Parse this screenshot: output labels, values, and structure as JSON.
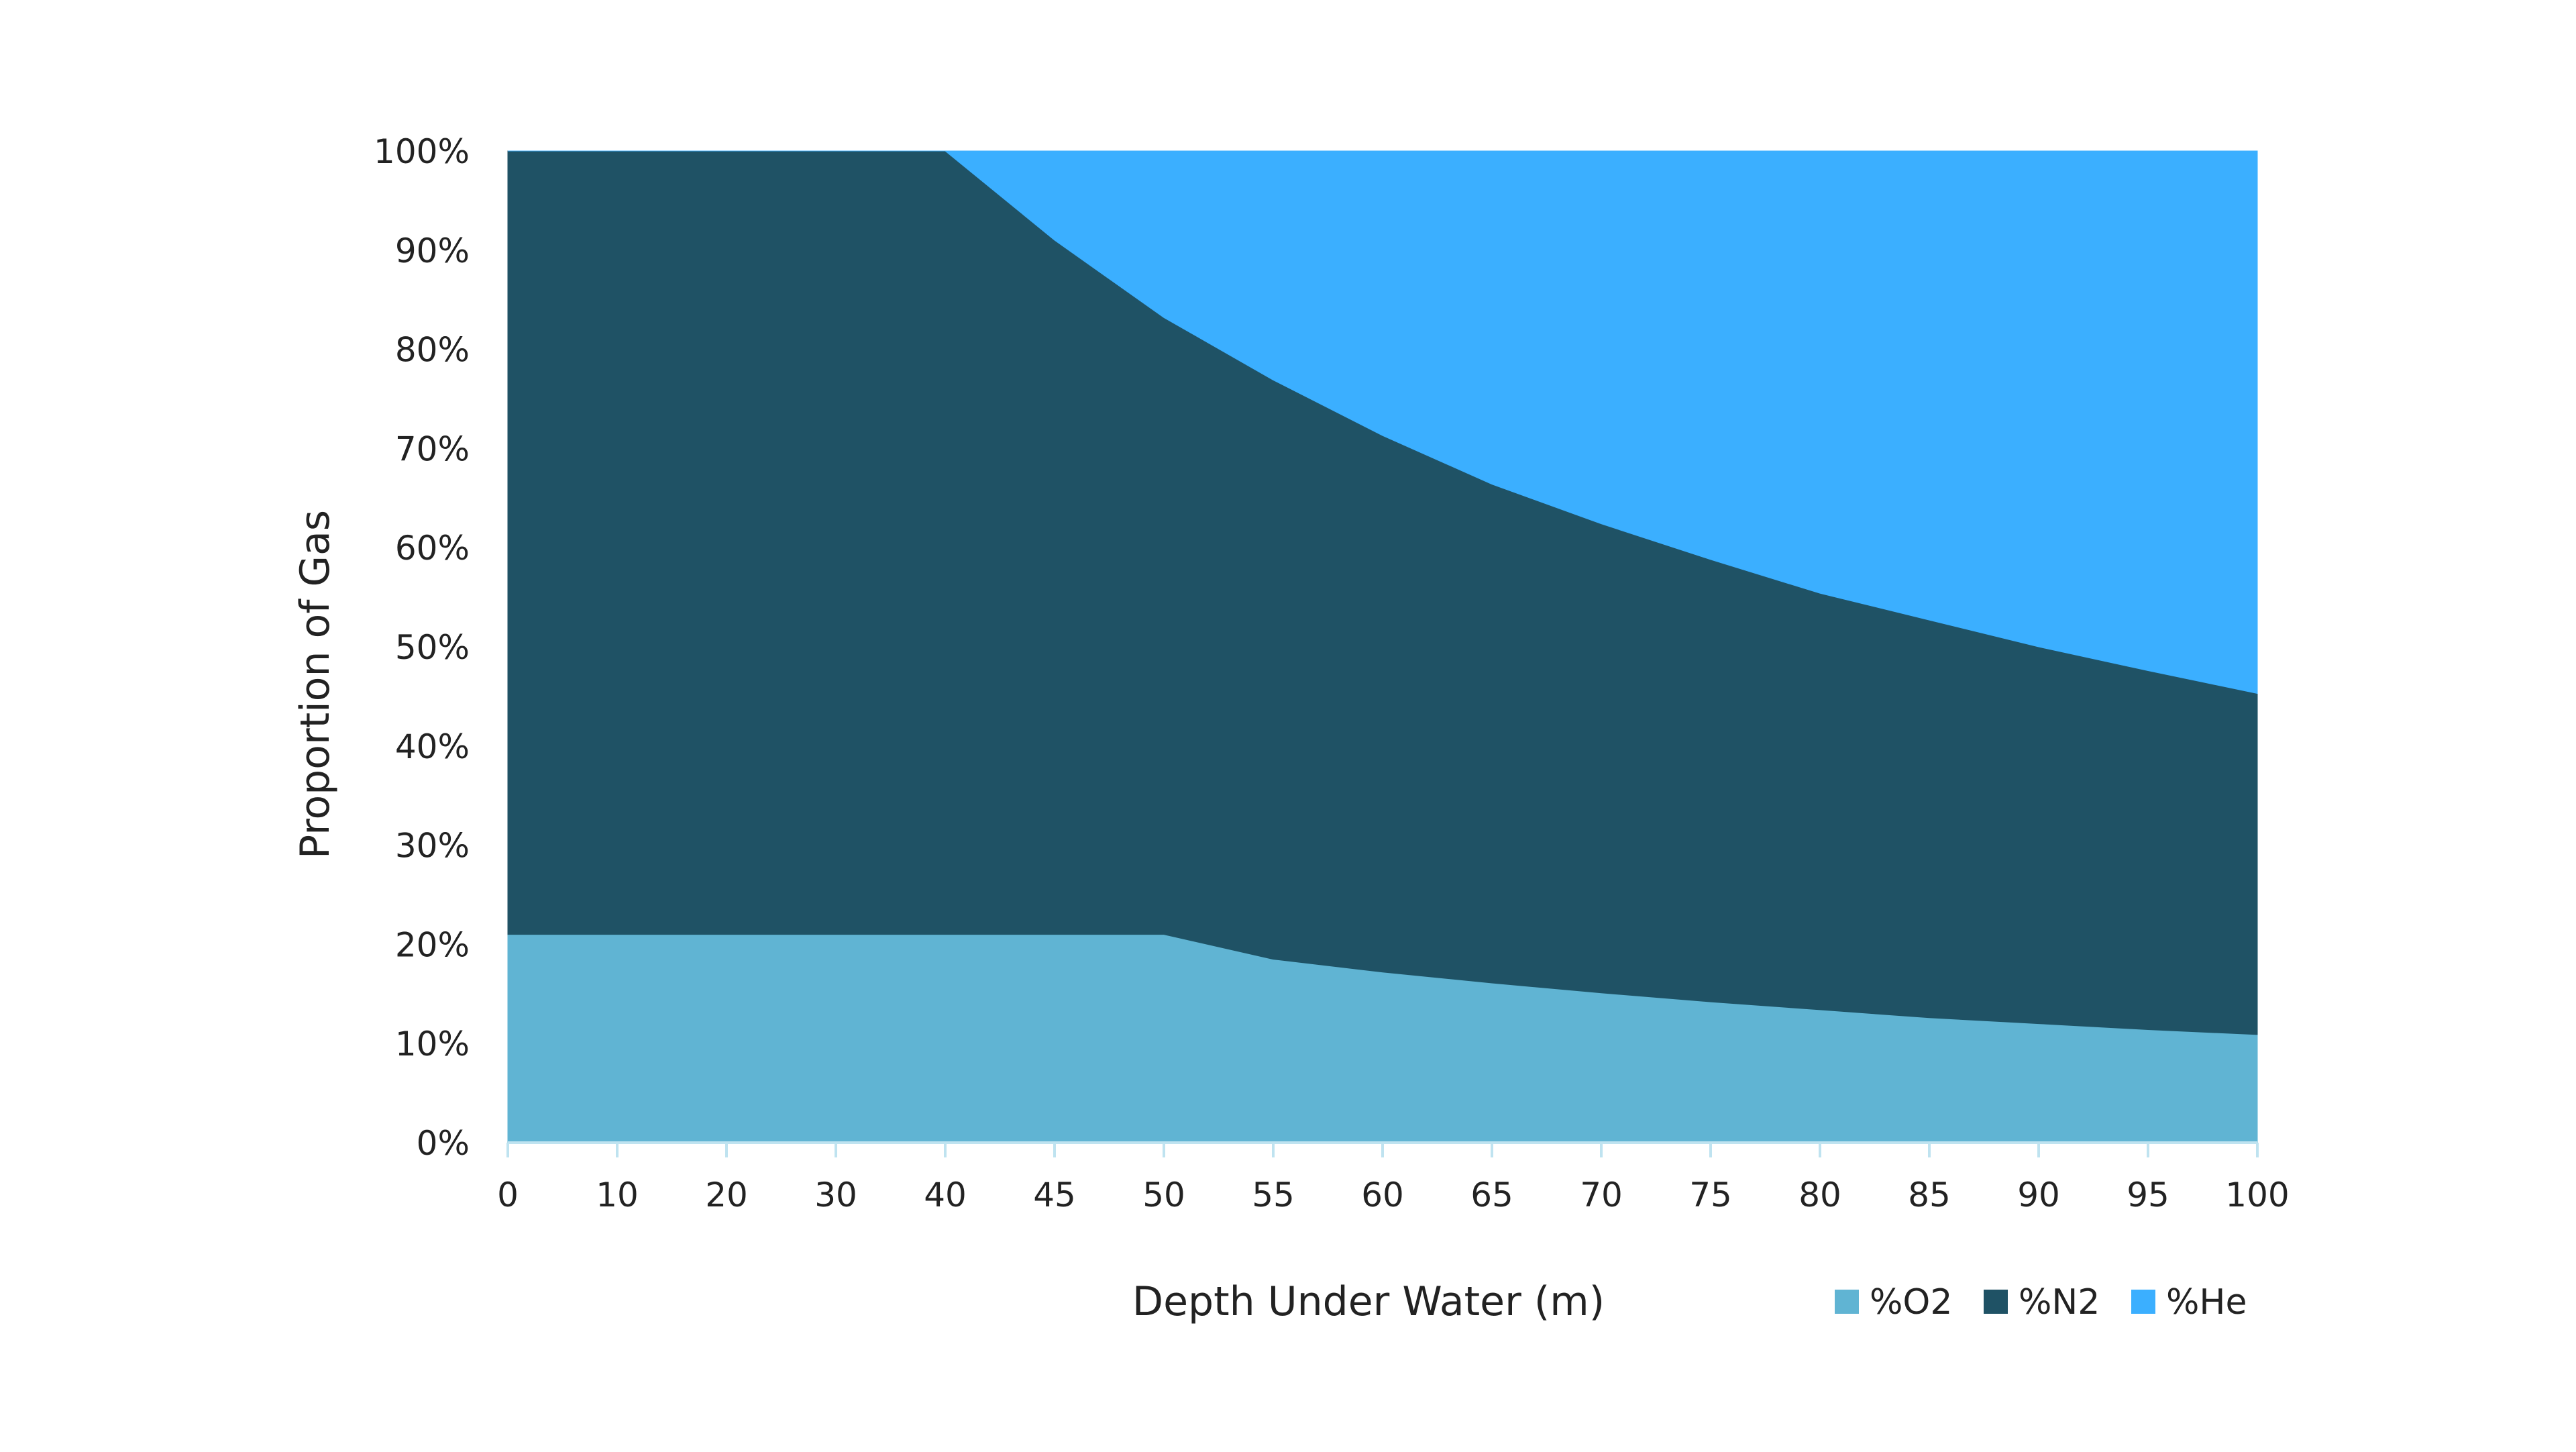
{
  "chart_data": {
    "type": "area",
    "stacked": true,
    "title": "",
    "xlabel": "Depth Under Water (m)",
    "ylabel": "Proportion of Gas",
    "x": [
      0,
      10,
      20,
      30,
      40,
      45,
      50,
      55,
      60,
      65,
      70,
      75,
      80,
      85,
      90,
      95,
      100
    ],
    "x_tick_labels": [
      "0",
      "10",
      "20",
      "30",
      "40",
      "45",
      "50",
      "55",
      "60",
      "65",
      "70",
      "75",
      "80",
      "85",
      "90",
      "95",
      "100"
    ],
    "y_tick_labels": [
      "0%",
      "10%",
      "20%",
      "30%",
      "40%",
      "50%",
      "60%",
      "70%",
      "80%",
      "90%",
      "100%"
    ],
    "ylim": [
      0,
      100
    ],
    "y_unit": "%",
    "series": [
      {
        "name": "%O2",
        "color": "#60B4D3",
        "values": [
          21,
          21,
          21,
          21,
          21,
          21,
          21,
          18.5,
          17.2,
          16.1,
          15.1,
          14.2,
          13.4,
          12.6,
          12,
          11.4,
          10.9
        ]
      },
      {
        "name": "%N2",
        "color": "#1F5265",
        "values": [
          79,
          79,
          79,
          79,
          79,
          70,
          62.2,
          58.4,
          54.1,
          50.3,
          47.3,
          44.6,
          42,
          40.1,
          38,
          36.2,
          34.4
        ]
      },
      {
        "name": "%He",
        "color": "#3BAFFF",
        "values": [
          0,
          0,
          0,
          0,
          0,
          9,
          16.8,
          23.1,
          28.7,
          33.6,
          37.6,
          41.2,
          44.6,
          47.3,
          50,
          52.4,
          54.7
        ]
      }
    ],
    "grid": false,
    "legend_position": "bottom-right"
  }
}
